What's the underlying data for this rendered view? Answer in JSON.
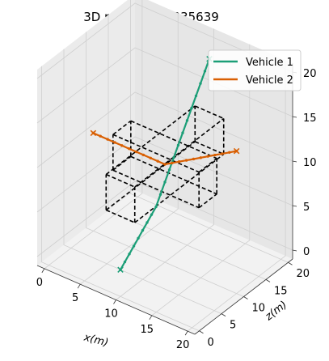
{
  "chart_data": {
    "type": "line",
    "projection": "3d",
    "title": "3D path, J = 0.335639",
    "title_parts": {
      "prefix": "3D path, ",
      "symbol": "J",
      "suffix": " = 0.335639"
    },
    "xlabel": "x(m)",
    "ylabel": "",
    "zlabel": "z(m)",
    "xlim": [
      -1,
      21
    ],
    "ylim": [
      -1,
      21
    ],
    "zlim": [
      -1,
      21
    ],
    "x_ticks": [
      "0",
      "5",
      "10",
      "15",
      "20"
    ],
    "z_ticks": [
      "0",
      "5",
      "10",
      "15",
      "20"
    ],
    "vertical_ticks": [
      "0",
      "5",
      "10",
      "15",
      "20"
    ],
    "grid": true,
    "legend": {
      "position": "top-right"
    },
    "series": [
      {
        "name": "Vehicle 1",
        "color": "#1b9e77",
        "marker": "dot",
        "end_marker": "x",
        "x": [
          10,
          10,
          10,
          10,
          10,
          10,
          10,
          10,
          10,
          10,
          10,
          10,
          10,
          10,
          10,
          10,
          10,
          10,
          10,
          10,
          10
        ],
        "y": [
          0,
          1,
          2,
          3,
          4,
          5,
          6,
          7,
          8,
          9,
          10,
          11,
          12,
          13,
          14,
          15,
          16,
          17,
          18,
          19,
          20
        ],
        "z": [
          2,
          2.5,
          3,
          3.5,
          4,
          4.5,
          5,
          5.5,
          6,
          7,
          8,
          9,
          10,
          11,
          12,
          13,
          14,
          15,
          16,
          17,
          18
        ]
      },
      {
        "name": "Vehicle 2",
        "color": "#d95f02",
        "marker": "dot",
        "end_marker": "x",
        "x": [
          0,
          1,
          2,
          3,
          4,
          5,
          6,
          7,
          8,
          9,
          10,
          11,
          12,
          13,
          14,
          15,
          16,
          17,
          18,
          19,
          20
        ],
        "y": [
          10,
          10,
          10,
          10,
          10,
          10,
          10,
          10,
          10,
          10,
          10,
          10,
          10,
          10,
          10,
          10,
          10,
          10,
          10,
          10,
          10
        ],
        "z": [
          10,
          10,
          10,
          10,
          10,
          10,
          10,
          10,
          10,
          10,
          10,
          10.5,
          11,
          11.5,
          12,
          12.5,
          13,
          13.5,
          14,
          14.5,
          15
        ]
      }
    ],
    "obstacles": {
      "style": "dashed-black",
      "boxes": [
        {
          "x": [
            4,
            16
          ],
          "y": [
            8,
            12
          ],
          "z": [
            8,
            12
          ]
        },
        {
          "x": [
            8,
            12
          ],
          "y": [
            0,
            20
          ],
          "z": [
            8,
            12
          ]
        }
      ]
    }
  }
}
